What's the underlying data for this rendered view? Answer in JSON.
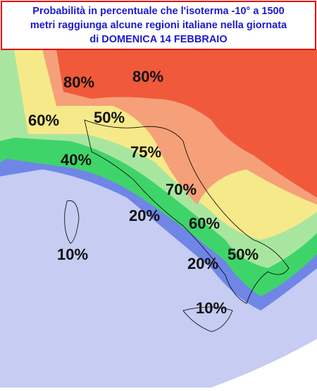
{
  "header": {
    "title": [
      "Probabilità in percentuale che l'isoterma -10° a 1500",
      "metri raggiunga alcune regioni italiane nella giornata",
      "di DOMENICA 14 FEBBRAIO"
    ]
  },
  "labels": [
    {
      "text": "80%"
    },
    {
      "text": "80%"
    },
    {
      "text": "60%"
    },
    {
      "text": "50%"
    },
    {
      "text": "75%"
    },
    {
      "text": "40%"
    },
    {
      "text": "70%"
    },
    {
      "text": "20%"
    },
    {
      "text": "60%"
    },
    {
      "text": "50%"
    },
    {
      "text": "10%"
    },
    {
      "text": "20%"
    },
    {
      "text": "10%"
    }
  ]
}
